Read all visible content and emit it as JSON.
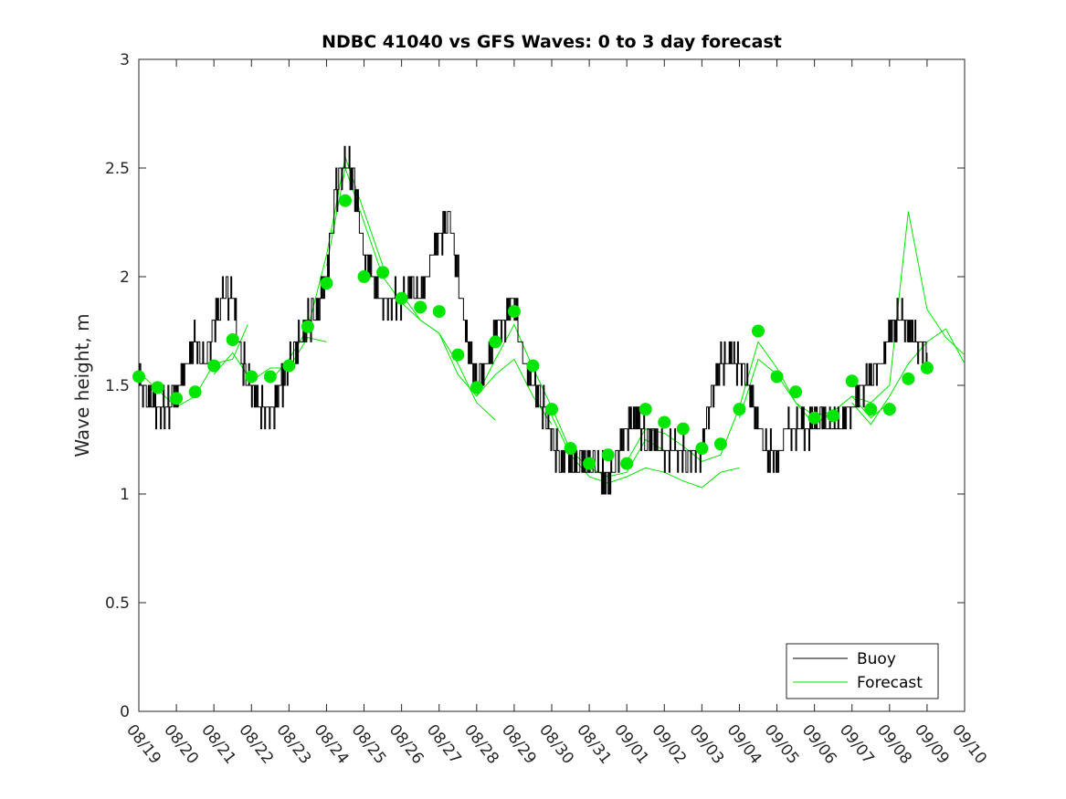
{
  "chart_data": {
    "type": "line",
    "title": "NDBC 41040 vs GFS Waves: 0 to 3 day forecast",
    "xlabel": "",
    "ylabel": "Wave height, m",
    "xlim": [
      0,
      22
    ],
    "ylim": [
      0,
      3
    ],
    "yticks": [
      0,
      0.5,
      1,
      1.5,
      2,
      2.5,
      3
    ],
    "ytick_labels": [
      "0",
      "0.5",
      "1",
      "1.5",
      "2",
      "2.5",
      "3"
    ],
    "xtick_labels": [
      "08/19",
      "08/20",
      "08/21",
      "08/22",
      "08/23",
      "08/24",
      "08/25",
      "08/26",
      "08/27",
      "08/28",
      "08/29",
      "08/30",
      "08/31",
      "09/01",
      "09/02",
      "09/03",
      "09/04",
      "09/05",
      "09/06",
      "09/07",
      "09/08",
      "09/09",
      "09/10"
    ],
    "legend": {
      "position": "bottom-right",
      "entries": [
        "Buoy",
        "Forecast"
      ]
    },
    "colors": {
      "buoy": "#000000",
      "forecast": "#00e600",
      "axis": "#262626"
    },
    "series": [
      {
        "name": "Buoy",
        "x": [
          0,
          0.25,
          0.5,
          0.75,
          1,
          1.25,
          1.5,
          1.75,
          2,
          2.25,
          2.5,
          2.75,
          3,
          3.25,
          3.5,
          3.75,
          4,
          4.25,
          4.5,
          4.75,
          5,
          5.25,
          5.5,
          5.75,
          6,
          6.25,
          6.5,
          6.75,
          7,
          7.25,
          7.5,
          7.75,
          8,
          8.25,
          8.5,
          8.75,
          9,
          9.25,
          9.5,
          9.75,
          10,
          10.25,
          10.5,
          10.75,
          11,
          11.25,
          11.5,
          11.75,
          12,
          12.25,
          12.5,
          12.75,
          13,
          13.25,
          13.5,
          13.75,
          14,
          14.25,
          14.5,
          14.75,
          15,
          15.25,
          15.5,
          15.75,
          16,
          16.25,
          16.5,
          16.75,
          17,
          17.25,
          17.5,
          17.75,
          18,
          18.25,
          18.5,
          18.75,
          19,
          19.25,
          19.5,
          19.75,
          20,
          20.25,
          20.5,
          20.75,
          21
        ],
        "values": [
          1.5,
          1.45,
          1.4,
          1.4,
          1.45,
          1.6,
          1.7,
          1.6,
          1.8,
          1.95,
          1.9,
          1.6,
          1.5,
          1.4,
          1.35,
          1.5,
          1.6,
          1.7,
          1.8,
          1.85,
          2.0,
          2.4,
          2.55,
          2.4,
          2.1,
          2.0,
          1.85,
          1.9,
          1.9,
          1.95,
          1.9,
          2.05,
          2.2,
          2.3,
          2.0,
          1.7,
          1.5,
          1.6,
          1.75,
          1.8,
          1.9,
          1.6,
          1.5,
          1.4,
          1.25,
          1.15,
          1.15,
          1.15,
          1.15,
          1.1,
          1.05,
          1.2,
          1.3,
          1.35,
          1.25,
          1.25,
          1.2,
          1.2,
          1.2,
          1.15,
          1.2,
          1.45,
          1.6,
          1.65,
          1.6,
          1.5,
          1.3,
          1.2,
          1.15,
          1.3,
          1.3,
          1.3,
          1.35,
          1.35,
          1.3,
          1.35,
          1.4,
          1.5,
          1.55,
          1.6,
          1.75,
          1.8,
          1.75,
          1.7,
          1.65
        ]
      },
      {
        "name": "Forecast",
        "x": [
          0,
          0.5,
          1,
          1.5,
          2,
          2.5,
          3,
          3.5,
          4,
          4.5,
          5,
          5.5,
          6,
          6.5,
          7,
          7.5,
          8,
          8.5,
          9,
          9.5,
          10,
          10.5,
          11,
          11.5,
          12,
          12.5,
          13,
          13.5,
          14,
          14.5,
          15,
          15.5,
          16,
          16.5,
          17,
          17.5,
          18,
          18.5,
          19,
          19.5,
          20,
          20.5,
          21
        ],
        "values": [
          1.54,
          1.49,
          1.44,
          1.47,
          1.59,
          1.71,
          1.54,
          1.54,
          1.59,
          1.77,
          1.97,
          2.35,
          2.0,
          2.02,
          1.9,
          1.86,
          1.84,
          1.64,
          1.49,
          1.7,
          1.84,
          1.59,
          1.39,
          1.21,
          1.14,
          1.18,
          1.14,
          1.39,
          1.33,
          1.3,
          1.21,
          1.23,
          1.39,
          1.75,
          1.54,
          1.47,
          1.35,
          1.36,
          1.52,
          1.39,
          1.39,
          1.53,
          1.58
        ],
        "markers": "filled-circle"
      }
    ],
    "forecast_runs": [
      {
        "x": [
          0,
          0.5,
          1,
          1.5,
          2,
          2.5,
          2.9
        ],
        "values": [
          1.56,
          1.48,
          1.4,
          1.45,
          1.6,
          1.62,
          1.78
        ]
      },
      {
        "x": [
          2,
          2.5,
          3,
          3.5,
          4,
          4.5,
          5
        ],
        "values": [
          1.55,
          1.65,
          1.52,
          1.58,
          1.58,
          1.72,
          1.7
        ]
      },
      {
        "x": [
          3.5,
          4,
          4.5,
          5,
          5.5,
          6,
          6.5
        ],
        "values": [
          1.52,
          1.62,
          1.76,
          2.1,
          2.55,
          2.3,
          2.05
        ]
      },
      {
        "x": [
          5,
          5.5,
          6,
          6.5,
          7,
          7.5,
          8,
          8.5,
          9,
          9.5
        ],
        "values": [
          2.05,
          2.5,
          2.25,
          2.0,
          1.88,
          1.8,
          1.74,
          1.6,
          1.42,
          1.34
        ]
      },
      {
        "x": [
          7,
          7.5,
          8,
          8.5,
          9,
          9.5,
          10,
          10.5,
          11
        ],
        "values": [
          1.92,
          1.8,
          1.74,
          1.55,
          1.45,
          1.55,
          1.62,
          1.45,
          1.32
        ]
      },
      {
        "x": [
          9,
          9.5,
          10,
          10.5,
          11,
          11.5,
          12,
          12.5,
          13,
          13.5,
          14
        ],
        "values": [
          1.45,
          1.62,
          1.78,
          1.58,
          1.4,
          1.2,
          1.12,
          1.08,
          1.1,
          1.25,
          1.2
        ]
      },
      {
        "x": [
          11,
          11.5,
          12,
          12.5,
          13,
          13.5,
          14,
          14.5,
          15,
          15.5,
          16
        ],
        "values": [
          1.36,
          1.18,
          1.08,
          1.05,
          1.08,
          1.12,
          1.1,
          1.06,
          1.03,
          1.1,
          1.12
        ]
      },
      {
        "x": [
          13,
          13.5,
          14,
          14.5,
          15,
          15.5,
          16,
          16.5,
          17,
          17.5,
          18
        ],
        "values": [
          1.15,
          1.3,
          1.28,
          1.22,
          1.15,
          1.18,
          1.4,
          1.7,
          1.58,
          1.42,
          1.36
        ]
      },
      {
        "x": [
          16,
          16.5,
          17,
          17.5,
          18,
          18.5,
          19,
          19.5,
          20
        ],
        "values": [
          1.35,
          1.62,
          1.55,
          1.42,
          1.32,
          1.38,
          1.45,
          1.35,
          1.42
        ]
      },
      {
        "x": [
          18,
          18.5,
          19,
          19.5,
          20,
          20.5,
          21,
          21.5,
          22
        ],
        "values": [
          1.36,
          1.38,
          1.45,
          1.42,
          1.5,
          2.3,
          1.85,
          1.72,
          1.64
        ]
      },
      {
        "x": [
          19,
          19.5,
          20,
          20.5,
          21,
          21.5,
          22
        ],
        "values": [
          1.42,
          1.32,
          1.45,
          1.6,
          1.7,
          1.76,
          1.6
        ]
      }
    ]
  }
}
